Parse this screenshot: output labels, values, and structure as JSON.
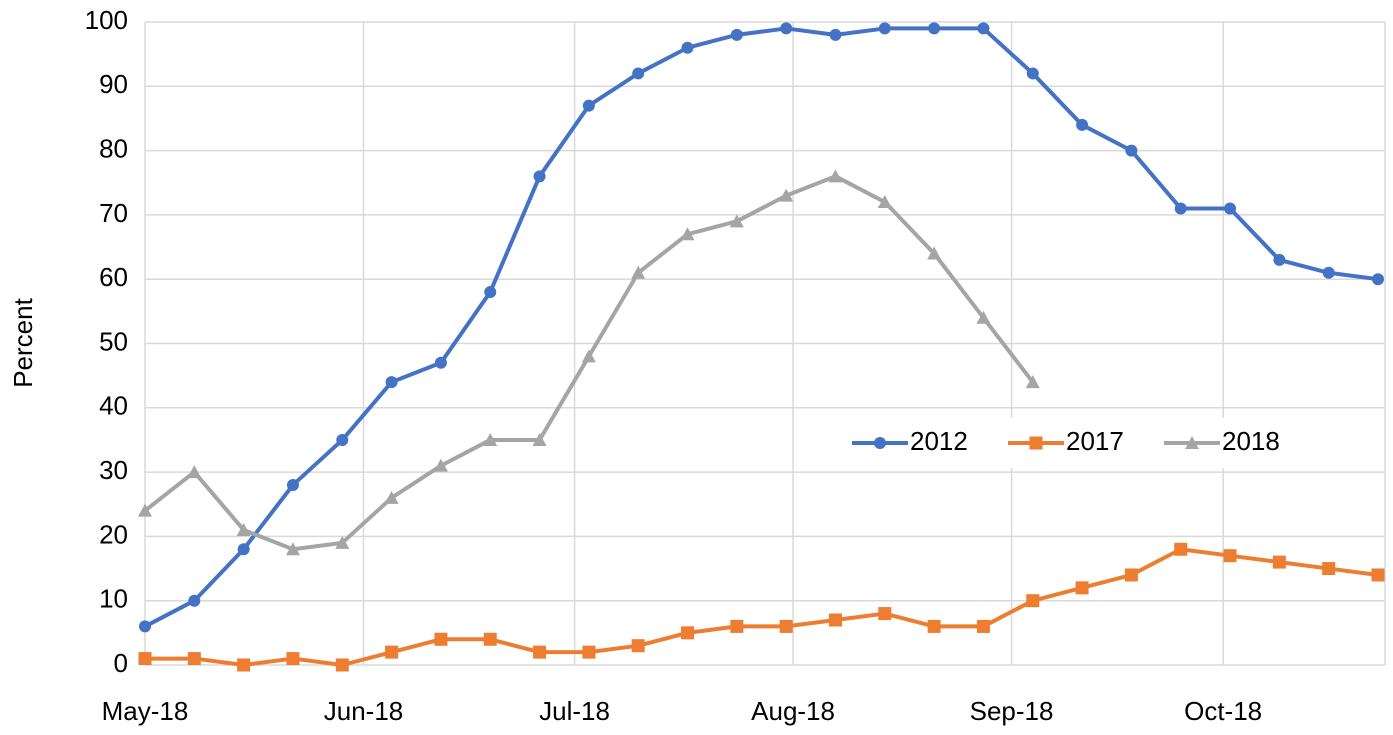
{
  "chart_data": {
    "type": "line",
    "y_label": "Percent",
    "x": [
      0,
      1,
      2,
      3,
      4,
      5,
      6,
      7,
      8,
      9,
      10,
      11,
      12,
      13,
      14,
      15,
      16,
      17,
      18,
      19,
      20,
      21,
      22,
      23,
      24,
      25
    ],
    "xlim": [
      0,
      25
    ],
    "xticks": [
      {
        "value": 0,
        "label": "May-18"
      },
      {
        "value": 4.43,
        "label": "Jun-18"
      },
      {
        "value": 8.71,
        "label": "Jul-18"
      },
      {
        "value": 13.14,
        "label": "Aug-18"
      },
      {
        "value": 17.57,
        "label": "Sep-18"
      },
      {
        "value": 21.86,
        "label": "Oct-18"
      }
    ],
    "ylim": [
      0,
      100
    ],
    "yticks": [
      0,
      10,
      20,
      30,
      40,
      50,
      60,
      70,
      80,
      90,
      100
    ],
    "grid": true,
    "legend": "right",
    "series": [
      {
        "name": "2012",
        "color": "#4472c4",
        "marker": "circle",
        "values": [
          6,
          10,
          18,
          28,
          35,
          44,
          47,
          58,
          76,
          87,
          92,
          96,
          98,
          99,
          98,
          99,
          99,
          99,
          92,
          84,
          80,
          71,
          71,
          63,
          61,
          60
        ]
      },
      {
        "name": "2017",
        "color": "#ed7d31",
        "marker": "square",
        "values": [
          1,
          1,
          0,
          1,
          0,
          2,
          4,
          4,
          2,
          2,
          3,
          5,
          6,
          6,
          7,
          8,
          6,
          6,
          10,
          12,
          14,
          18,
          17,
          16,
          15,
          14
        ]
      },
      {
        "name": "2018",
        "color": "#a5a5a5",
        "marker": "triangle",
        "values": [
          24,
          30,
          21,
          18,
          19,
          26,
          31,
          35,
          35,
          48,
          61,
          67,
          69,
          73,
          76,
          72,
          64,
          54,
          44,
          null,
          null,
          null,
          null,
          null,
          null,
          null
        ]
      }
    ]
  }
}
